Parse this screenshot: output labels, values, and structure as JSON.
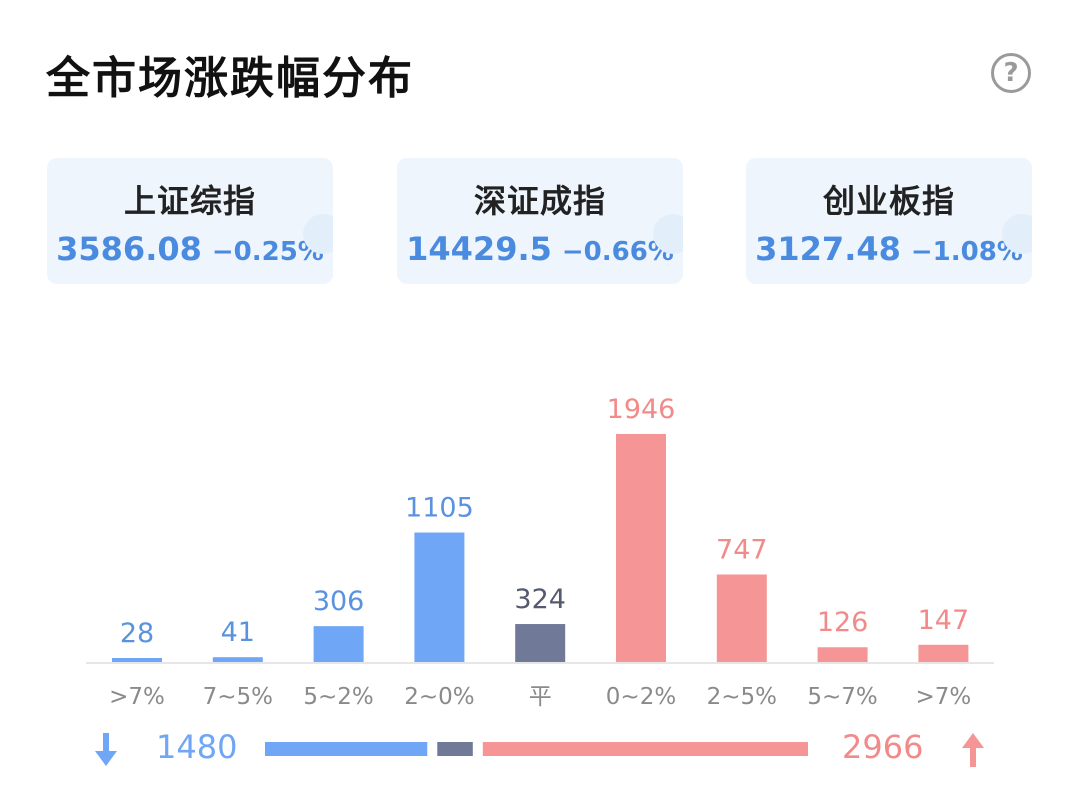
{
  "header": {
    "title": "全市场涨跌幅分布",
    "help_symbol": "?"
  },
  "indices": [
    {
      "name": "上证综指",
      "price": "3586.08",
      "change": "−0.25%"
    },
    {
      "name": "深证成指",
      "price": "14429.5",
      "change": "−0.66%"
    },
    {
      "name": "创业板指",
      "price": "3127.48",
      "change": "−1.08%"
    }
  ],
  "colors": {
    "down": "#6fa6f5",
    "flat": "#707a98",
    "up": "#f59595",
    "up_text": "#f28a8a",
    "down_text": "#5a92e0",
    "flat_text": "#555a6e"
  },
  "chart_data": {
    "type": "bar",
    "title": "",
    "categories": [
      ">7%",
      "7~5%",
      "5~2%",
      "2~0%",
      "平",
      "0~2%",
      "2~5%",
      "5~7%",
      ">7%"
    ],
    "values": [
      28,
      41,
      306,
      1105,
      324,
      1946,
      747,
      126,
      147
    ],
    "direction": [
      "down",
      "down",
      "down",
      "down",
      "flat",
      "up",
      "up",
      "up",
      "up"
    ],
    "ylim": [
      0,
      1946
    ],
    "grid": false,
    "legend": "none"
  },
  "summary": {
    "down_count": "1480",
    "flat_count": 324,
    "up_count": "2966",
    "down_icon": "arrow-down-icon",
    "up_icon": "arrow-up-icon"
  }
}
